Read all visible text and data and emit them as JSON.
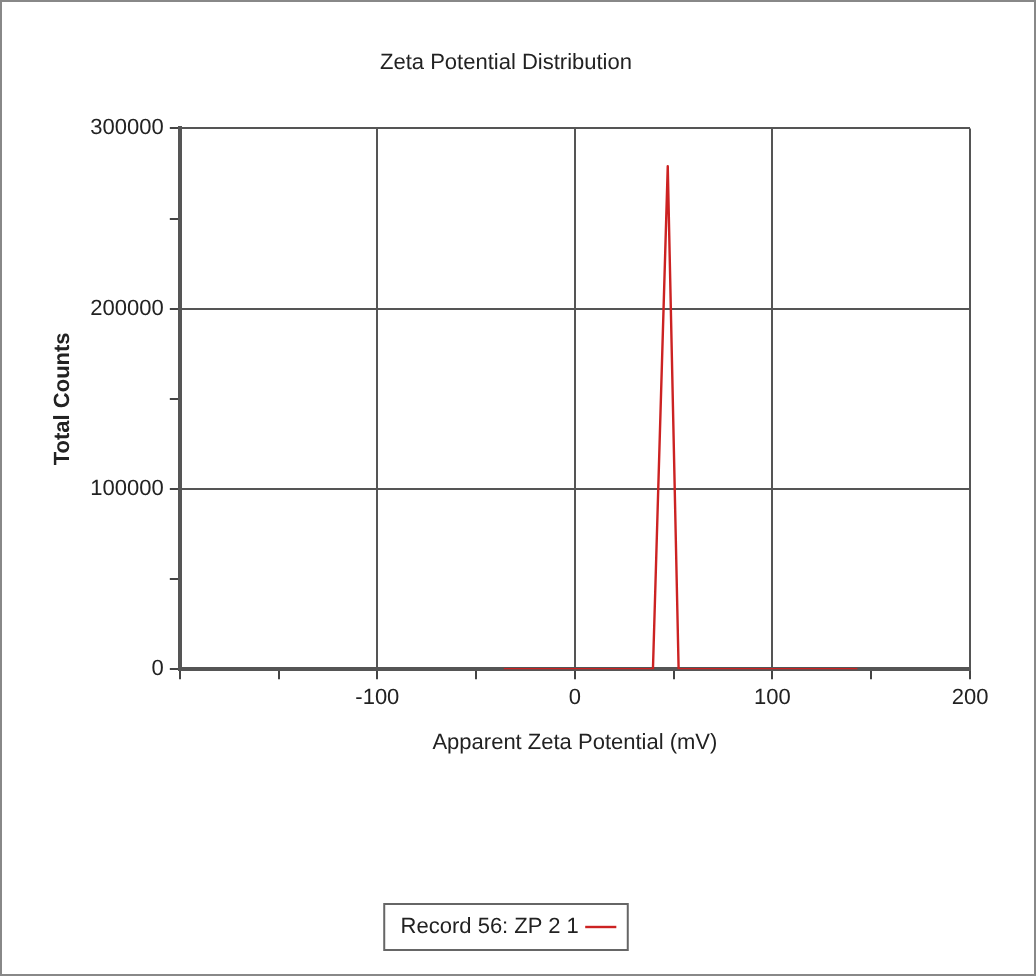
{
  "chart_data": {
    "type": "line",
    "title": "Zeta Potential Distribution",
    "xlabel": "Apparent Zeta Potential (mV)",
    "ylabel": "Total Counts",
    "x": [
      -36,
      39.5,
      47,
      52.5,
      143
    ],
    "series": [
      {
        "name": "Record 56: ZP 2 1",
        "color": "#cc2222",
        "values": [
          0,
          0,
          279000,
          0,
          0
        ]
      }
    ],
    "xlim": [
      -200,
      200
    ],
    "xticks": [
      {
        "value": -200,
        "label": null
      },
      {
        "value": -150,
        "label": null
      },
      -100,
      {
        "value": -50,
        "label": null
      },
      0,
      {
        "value": 50,
        "label": null
      },
      100,
      {
        "value": 150,
        "label": null
      },
      200
    ],
    "ylim": [
      0,
      300000
    ],
    "yticks": [
      0,
      {
        "value": 50000,
        "label": null
      },
      100000,
      {
        "value": 150000,
        "label": null
      },
      200000,
      {
        "value": 250000,
        "label": null
      },
      300000
    ],
    "grid": true,
    "legend": "bottom",
    "marker": "none",
    "line_style": "solid"
  }
}
